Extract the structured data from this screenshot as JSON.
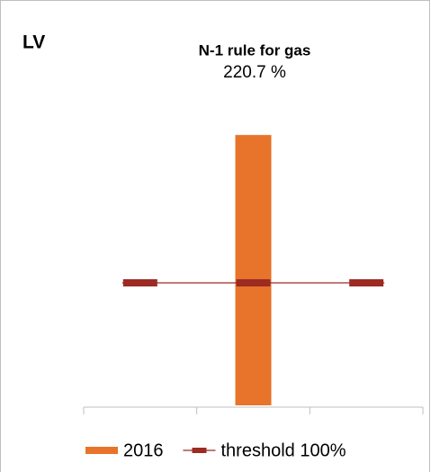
{
  "chart_data": {
    "type": "bar",
    "panel_label": "LV",
    "title": "N-1 rule for gas",
    "categories": [
      null,
      null,
      null
    ],
    "series": [
      {
        "name": "2016",
        "type": "bar",
        "color": "#e8732a",
        "values": [
          null,
          220.7,
          null
        ],
        "value_labels": [
          null,
          "220.7 %",
          null
        ]
      },
      {
        "name": "threshold 100%",
        "type": "line",
        "color": "#9c2b23",
        "values": [
          100,
          100,
          100
        ]
      }
    ],
    "ylim": [
      0,
      250
    ]
  }
}
